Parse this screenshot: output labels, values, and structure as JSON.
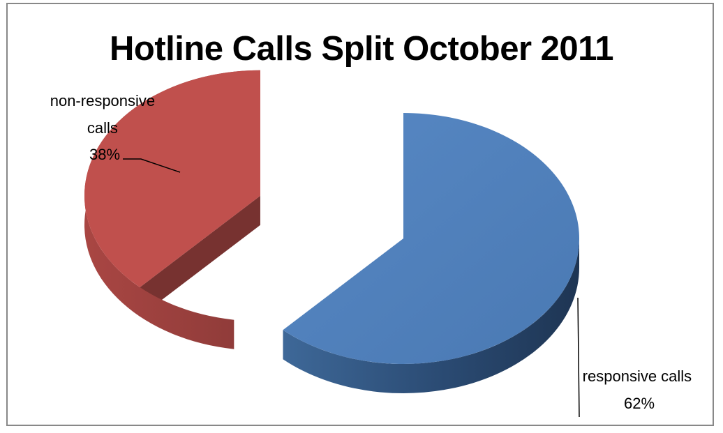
{
  "chart_data": {
    "type": "pie",
    "title": "Hotline Calls Split October 2011",
    "slices": [
      {
        "label_lines": [
          "non-responsive",
          "calls"
        ],
        "percent_label": "38%",
        "value": 38,
        "color": "#C0504D",
        "exploded": true
      },
      {
        "label_lines": [
          "responsive calls"
        ],
        "percent_label": "62%",
        "value": 62,
        "color": "#4F81BD",
        "exploded": false
      }
    ],
    "legend": "none",
    "data_labels": "outside-with-leader-lines",
    "style": "3d"
  }
}
